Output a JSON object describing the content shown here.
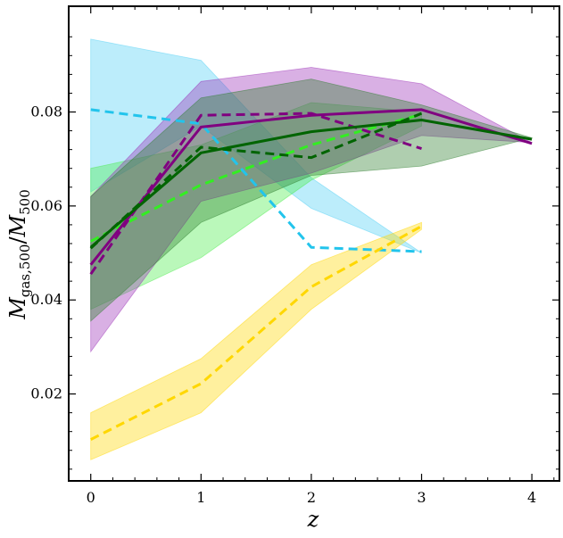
{
  "chart_data": {
    "type": "line",
    "title": "",
    "xlabel": "z",
    "ylabel": "M_gas,500 / M_500",
    "ylabel_parts": {
      "m1": "M",
      "sub1": "gas,500",
      "slash": "/",
      "m2": "M",
      "sub2": "500"
    },
    "xlim": [
      -0.2,
      4.25
    ],
    "ylim": [
      0.0015,
      0.1025
    ],
    "x_ticks": [
      0,
      1,
      2,
      3,
      4
    ],
    "x_tick_labels": [
      "0",
      "1",
      "2",
      "3",
      "4"
    ],
    "y_ticks": [
      0.02,
      0.04,
      0.06,
      0.08
    ],
    "y_tick_labels": [
      "0.02",
      "0.04",
      "0.06",
      "0.08"
    ],
    "grid": false,
    "legend": false,
    "bands": [
      {
        "name": "cyan-band",
        "color": "#4fd0f5",
        "x": [
          0,
          1,
          2,
          3
        ],
        "lo": [
          0.063,
          0.077,
          0.0595,
          0.05
        ],
        "hi": [
          0.0955,
          0.091,
          0.066,
          0.05
        ]
      },
      {
        "name": "yellow-band",
        "color": "#ffd700",
        "x": [
          0,
          1,
          2,
          3
        ],
        "lo": [
          0.006,
          0.016,
          0.038,
          0.055
        ],
        "hi": [
          0.016,
          0.0275,
          0.0475,
          0.0565
        ]
      },
      {
        "name": "lime-band",
        "color": "#4aec4a",
        "x": [
          0,
          1,
          2,
          3
        ],
        "lo": [
          0.038,
          0.049,
          0.0655,
          0.077
        ],
        "hi": [
          0.068,
          0.073,
          0.082,
          0.08
        ]
      },
      {
        "name": "purple-band",
        "color": "#9b30b8",
        "x": [
          0,
          1,
          2,
          3,
          4
        ],
        "lo": [
          0.029,
          0.061,
          0.067,
          0.075,
          0.0735
        ],
        "hi": [
          0.062,
          0.0865,
          0.0895,
          0.086,
          0.0735
        ]
      },
      {
        "name": "darkgreen-band",
        "color": "#2e7d2e",
        "x": [
          0,
          1,
          2,
          3,
          4
        ],
        "lo": [
          0.0355,
          0.0565,
          0.0665,
          0.0685,
          0.0745
        ],
        "hi": [
          0.062,
          0.083,
          0.087,
          0.0815,
          0.0745
        ]
      }
    ],
    "series": [
      {
        "name": "cyan-dashed",
        "color": "#22c4ec",
        "style": "dashed",
        "x": [
          0,
          1,
          2,
          3
        ],
        "y": [
          0.0805,
          0.0775,
          0.0512,
          0.0503
        ]
      },
      {
        "name": "yellow-dashed",
        "color": "#ffd700",
        "style": "dashed",
        "x": [
          0,
          1,
          2,
          3
        ],
        "y": [
          0.0103,
          0.0222,
          0.0428,
          0.0557
        ]
      },
      {
        "name": "lime-dashed",
        "color": "#33ee22",
        "style": "dashed",
        "x": [
          0,
          1,
          2,
          3
        ],
        "y": [
          0.0525,
          0.0645,
          0.073,
          0.0795
        ]
      },
      {
        "name": "purple-dashed",
        "color": "#800080",
        "style": "dashed",
        "x": [
          0,
          1,
          2,
          3
        ],
        "y": [
          0.0455,
          0.0793,
          0.0797,
          0.0722
        ]
      },
      {
        "name": "purple-solid",
        "color": "#800080",
        "style": "solid",
        "x": [
          0,
          1,
          2,
          3,
          4
        ],
        "y": [
          0.0475,
          0.0768,
          0.0793,
          0.0805,
          0.0733
        ]
      },
      {
        "name": "darkgreen-dashed",
        "color": "#006400",
        "style": "dashed",
        "x": [
          0,
          1,
          2,
          3
        ],
        "y": [
          0.051,
          0.0725,
          0.0703,
          0.0797
        ]
      },
      {
        "name": "darkgreen-solid",
        "color": "#006400",
        "style": "solid",
        "x": [
          0,
          1,
          2,
          3,
          4
        ],
        "y": [
          0.0512,
          0.0713,
          0.0758,
          0.0783,
          0.0742
        ]
      }
    ]
  }
}
